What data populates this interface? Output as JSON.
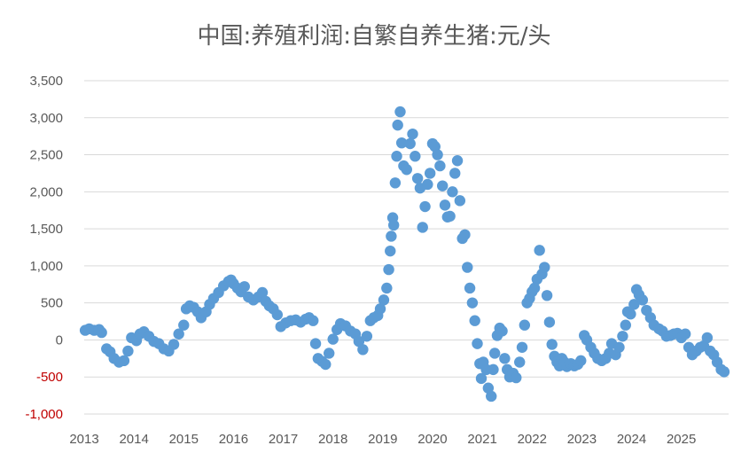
{
  "chart_data": {
    "type": "scatter",
    "title": "中国:养殖利润:自繁自养生猪:元/头",
    "xlabel": "",
    "ylabel": "",
    "xlim": [
      2013.0,
      2025.95
    ],
    "ylim": [
      -1000,
      3500
    ],
    "grid": true,
    "legend": "none",
    "colors": {
      "points": "#5b9bd5",
      "negative_tick": "#c00000",
      "text": "#595959",
      "grid": "#d9d9d9"
    },
    "x_ticks": [
      2013,
      2014,
      2015,
      2016,
      2017,
      2018,
      2019,
      2020,
      2021,
      2022,
      2023,
      2024,
      2025
    ],
    "x_tick_labels": [
      "2013",
      "2014",
      "2015",
      "2016",
      "2017",
      "2018",
      "2019",
      "2020",
      "2021",
      "2022",
      "2023",
      "2024",
      "2025"
    ],
    "y_ticks": [
      -1000,
      -500,
      0,
      500,
      1000,
      1500,
      2000,
      2500,
      3000,
      3500
    ],
    "y_tick_labels": [
      "-1,000",
      "-500",
      "0",
      "500",
      "1,000",
      "1,500",
      "2,000",
      "2,500",
      "3,000",
      "3,500"
    ],
    "points": [
      [
        2013.02,
        130
      ],
      [
        2013.1,
        150
      ],
      [
        2013.2,
        130
      ],
      [
        2013.3,
        140
      ],
      [
        2013.35,
        100
      ],
      [
        2013.45,
        -120
      ],
      [
        2013.52,
        -160
      ],
      [
        2013.6,
        -250
      ],
      [
        2013.7,
        -300
      ],
      [
        2013.8,
        -280
      ],
      [
        2013.88,
        -150
      ],
      [
        2013.95,
        30
      ],
      [
        2014.05,
        -10
      ],
      [
        2014.12,
        80
      ],
      [
        2014.2,
        110
      ],
      [
        2014.3,
        50
      ],
      [
        2014.4,
        -20
      ],
      [
        2014.5,
        -50
      ],
      [
        2014.6,
        -120
      ],
      [
        2014.7,
        -150
      ],
      [
        2014.8,
        -60
      ],
      [
        2014.9,
        80
      ],
      [
        2015.0,
        200
      ],
      [
        2015.05,
        420
      ],
      [
        2015.12,
        460
      ],
      [
        2015.2,
        440
      ],
      [
        2015.28,
        380
      ],
      [
        2015.35,
        300
      ],
      [
        2015.45,
        380
      ],
      [
        2015.52,
        480
      ],
      [
        2015.6,
        560
      ],
      [
        2015.7,
        640
      ],
      [
        2015.8,
        730
      ],
      [
        2015.9,
        790
      ],
      [
        2015.95,
        810
      ],
      [
        2016.0,
        760
      ],
      [
        2016.08,
        700
      ],
      [
        2016.15,
        650
      ],
      [
        2016.22,
        720
      ],
      [
        2016.3,
        580
      ],
      [
        2016.4,
        540
      ],
      [
        2016.5,
        580
      ],
      [
        2016.58,
        640
      ],
      [
        2016.65,
        520
      ],
      [
        2016.72,
        460
      ],
      [
        2016.8,
        420
      ],
      [
        2016.88,
        340
      ],
      [
        2016.95,
        180
      ],
      [
        2017.05,
        230
      ],
      [
        2017.15,
        260
      ],
      [
        2017.25,
        270
      ],
      [
        2017.35,
        240
      ],
      [
        2017.45,
        280
      ],
      [
        2017.52,
        300
      ],
      [
        2017.6,
        260
      ],
      [
        2017.65,
        -50
      ],
      [
        2017.7,
        -250
      ],
      [
        2017.78,
        -290
      ],
      [
        2017.85,
        -330
      ],
      [
        2017.92,
        -180
      ],
      [
        2018.0,
        10
      ],
      [
        2018.08,
        140
      ],
      [
        2018.15,
        220
      ],
      [
        2018.25,
        190
      ],
      [
        2018.35,
        120
      ],
      [
        2018.45,
        80
      ],
      [
        2018.52,
        -20
      ],
      [
        2018.6,
        -130
      ],
      [
        2018.68,
        50
      ],
      [
        2018.75,
        260
      ],
      [
        2018.82,
        300
      ],
      [
        2018.9,
        330
      ],
      [
        2018.95,
        420
      ],
      [
        2019.02,
        540
      ],
      [
        2019.08,
        700
      ],
      [
        2019.12,
        950
      ],
      [
        2019.15,
        1200
      ],
      [
        2019.17,
        1400
      ],
      [
        2019.2,
        1650
      ],
      [
        2019.22,
        1550
      ],
      [
        2019.25,
        2120
      ],
      [
        2019.28,
        2480
      ],
      [
        2019.3,
        2900
      ],
      [
        2019.35,
        3080
      ],
      [
        2019.38,
        2660
      ],
      [
        2019.42,
        2350
      ],
      [
        2019.48,
        2300
      ],
      [
        2019.55,
        2650
      ],
      [
        2019.6,
        2780
      ],
      [
        2019.65,
        2480
      ],
      [
        2019.7,
        2180
      ],
      [
        2019.75,
        2050
      ],
      [
        2019.8,
        1520
      ],
      [
        2019.85,
        1800
      ],
      [
        2019.9,
        2100
      ],
      [
        2019.95,
        2250
      ],
      [
        2020.0,
        2650
      ],
      [
        2020.05,
        2610
      ],
      [
        2020.1,
        2500
      ],
      [
        2020.15,
        2350
      ],
      [
        2020.2,
        2080
      ],
      [
        2020.25,
        1820
      ],
      [
        2020.3,
        1660
      ],
      [
        2020.35,
        1670
      ],
      [
        2020.4,
        2000
      ],
      [
        2020.45,
        2250
      ],
      [
        2020.5,
        2420
      ],
      [
        2020.55,
        1880
      ],
      [
        2020.6,
        1370
      ],
      [
        2020.65,
        1420
      ],
      [
        2020.7,
        980
      ],
      [
        2020.75,
        700
      ],
      [
        2020.8,
        500
      ],
      [
        2020.85,
        260
      ],
      [
        2020.9,
        -50
      ],
      [
        2020.95,
        -320
      ],
      [
        2020.98,
        -520
      ],
      [
        2021.02,
        -300
      ],
      [
        2021.08,
        -400
      ],
      [
        2021.12,
        -650
      ],
      [
        2021.18,
        -760
      ],
      [
        2021.22,
        -400
      ],
      [
        2021.25,
        -180
      ],
      [
        2021.3,
        60
      ],
      [
        2021.35,
        160
      ],
      [
        2021.4,
        120
      ],
      [
        2021.45,
        -250
      ],
      [
        2021.5,
        -400
      ],
      [
        2021.55,
        -500
      ],
      [
        2021.62,
        -450
      ],
      [
        2021.68,
        -510
      ],
      [
        2021.75,
        -300
      ],
      [
        2021.8,
        -100
      ],
      [
        2021.85,
        200
      ],
      [
        2021.9,
        500
      ],
      [
        2021.95,
        560
      ],
      [
        2022.0,
        650
      ],
      [
        2022.05,
        700
      ],
      [
        2022.1,
        820
      ],
      [
        2022.15,
        1210
      ],
      [
        2022.2,
        890
      ],
      [
        2022.25,
        980
      ],
      [
        2022.3,
        600
      ],
      [
        2022.35,
        240
      ],
      [
        2022.4,
        -60
      ],
      [
        2022.45,
        -220
      ],
      [
        2022.5,
        -300
      ],
      [
        2022.55,
        -350
      ],
      [
        2022.6,
        -250
      ],
      [
        2022.65,
        -300
      ],
      [
        2022.7,
        -360
      ],
      [
        2022.78,
        -320
      ],
      [
        2022.85,
        -350
      ],
      [
        2022.92,
        -330
      ],
      [
        2022.98,
        -280
      ],
      [
        2023.05,
        60
      ],
      [
        2023.1,
        0
      ],
      [
        2023.18,
        -100
      ],
      [
        2023.25,
        -180
      ],
      [
        2023.32,
        -250
      ],
      [
        2023.4,
        -280
      ],
      [
        2023.48,
        -250
      ],
      [
        2023.55,
        -180
      ],
      [
        2023.6,
        -50
      ],
      [
        2023.68,
        -200
      ],
      [
        2023.75,
        -100
      ],
      [
        2023.82,
        50
      ],
      [
        2023.88,
        200
      ],
      [
        2023.92,
        380
      ],
      [
        2023.98,
        350
      ],
      [
        2024.05,
        480
      ],
      [
        2024.1,
        680
      ],
      [
        2024.15,
        610
      ],
      [
        2024.22,
        540
      ],
      [
        2024.3,
        400
      ],
      [
        2024.38,
        300
      ],
      [
        2024.45,
        200
      ],
      [
        2024.55,
        150
      ],
      [
        2024.62,
        120
      ],
      [
        2024.7,
        50
      ],
      [
        2024.78,
        60
      ],
      [
        2024.85,
        80
      ],
      [
        2024.92,
        90
      ],
      [
        2025.0,
        30
      ],
      [
        2025.08,
        80
      ],
      [
        2025.15,
        -100
      ],
      [
        2025.22,
        -200
      ],
      [
        2025.3,
        -150
      ],
      [
        2025.38,
        -100
      ],
      [
        2025.45,
        -80
      ],
      [
        2025.52,
        30
      ],
      [
        2025.58,
        -150
      ],
      [
        2025.65,
        -200
      ],
      [
        2025.72,
        -300
      ],
      [
        2025.8,
        -400
      ],
      [
        2025.86,
        -430
      ]
    ]
  }
}
